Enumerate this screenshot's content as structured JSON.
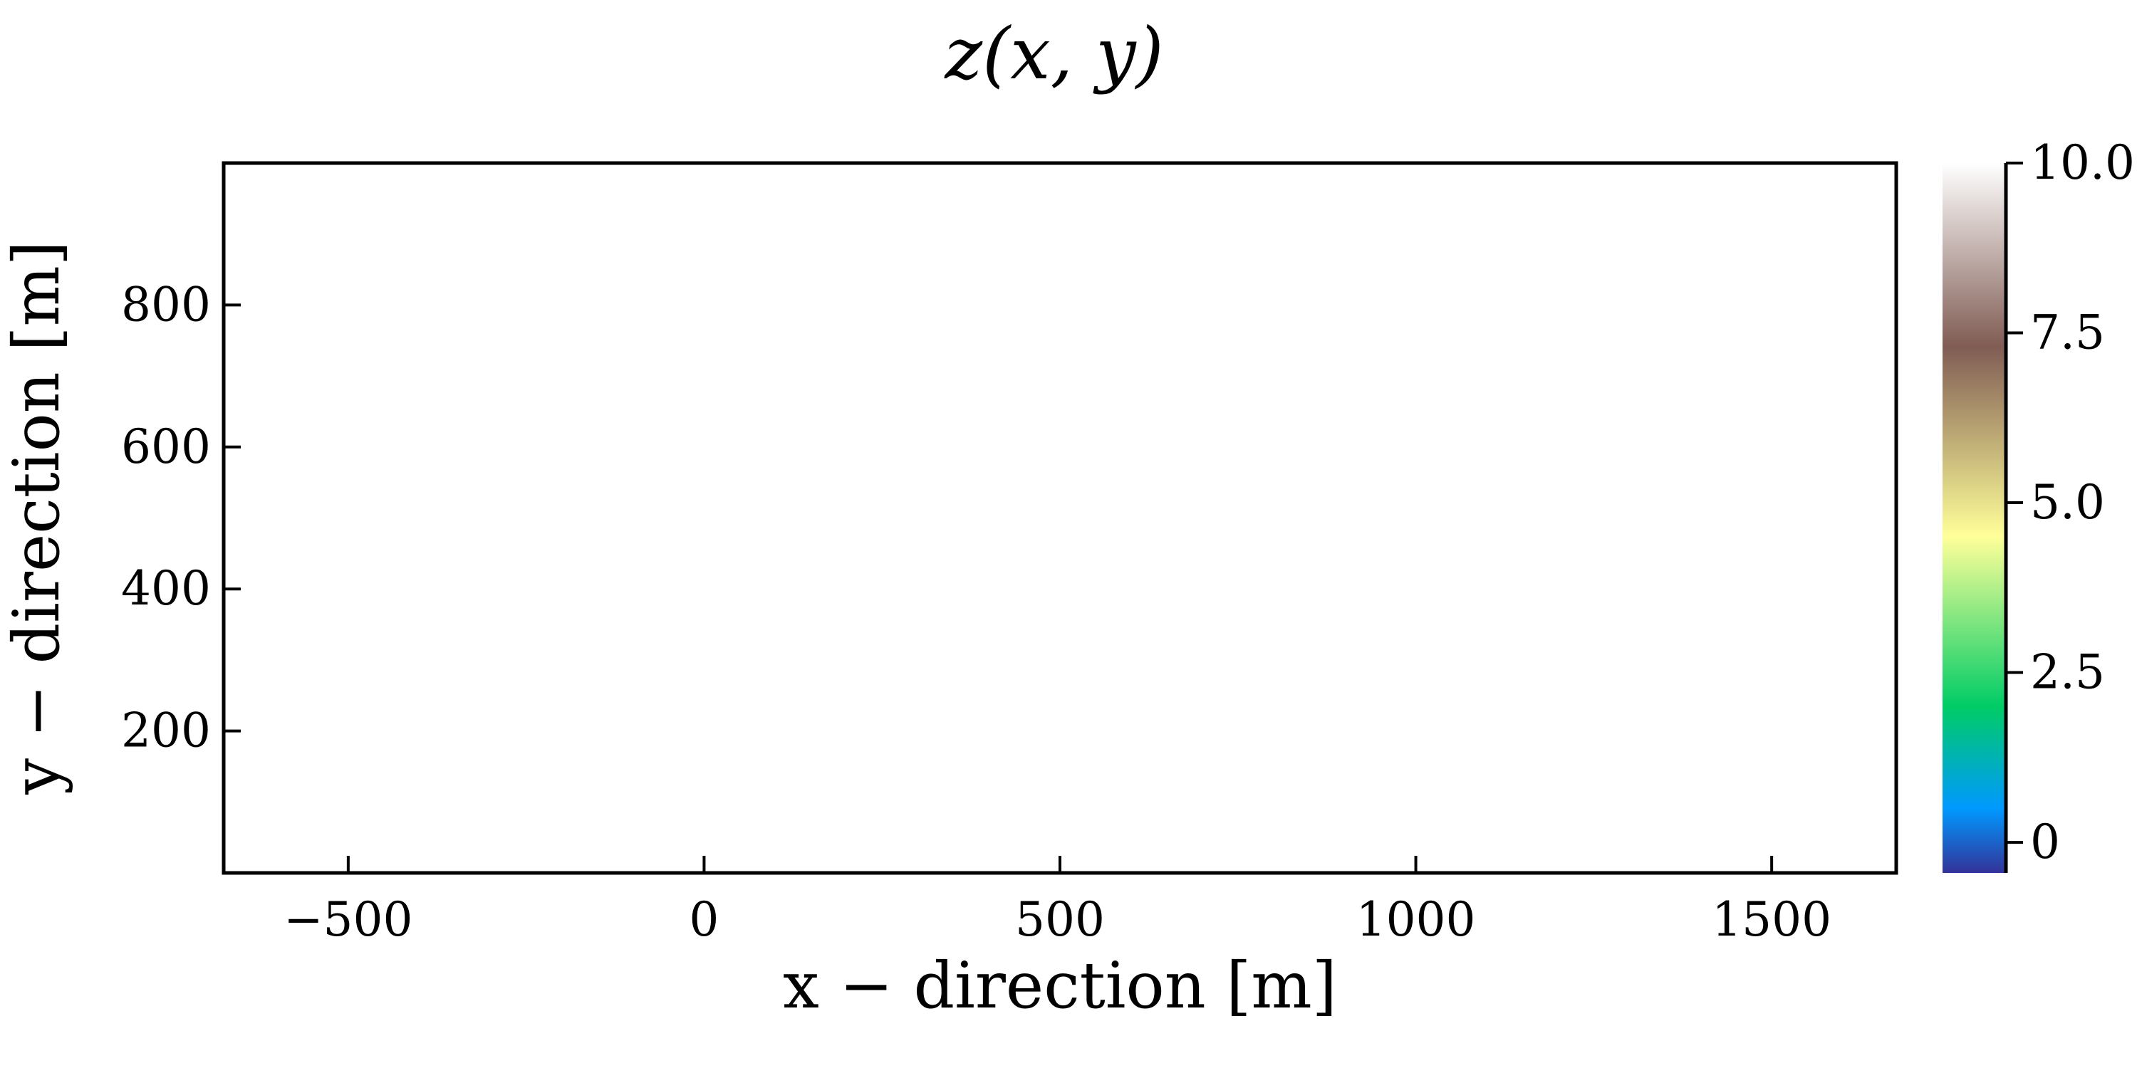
{
  "chart_data": {
    "type": "heatmap",
    "title": "z(x, y)",
    "xlabel": "x − direction [m]",
    "ylabel": "y − direction [m]",
    "xlim": [
      -675,
      1675
    ],
    "ylim": [
      0,
      1000
    ],
    "x_ticks": [
      -500,
      0,
      500,
      1000,
      1500
    ],
    "x_tick_labels": [
      "−500",
      "0",
      "500",
      "1000",
      "1500"
    ],
    "y_ticks": [
      200,
      400,
      600,
      800
    ],
    "y_tick_labels": [
      "200",
      "400",
      "600",
      "800"
    ],
    "data_extent": {
      "x": [
        0,
        1000
      ],
      "y": [
        0,
        1000
      ]
    },
    "z_values_uniform": 10.0,
    "grid": false,
    "colorbar": {
      "range": [
        -0.45,
        10.0
      ],
      "ticks": [
        0,
        2.5,
        5.0,
        7.5,
        10.0
      ],
      "tick_labels": [
        "0",
        "2.5",
        "5.0",
        "7.5",
        "10.0"
      ],
      "colormap": "terrain",
      "stops": [
        {
          "value": -0.45,
          "color": "#333399"
        },
        {
          "value": 0.5,
          "color": "#0099ff"
        },
        {
          "value": 2.0,
          "color": "#00cc66"
        },
        {
          "value": 4.5,
          "color": "#ffff99"
        },
        {
          "value": 7.3,
          "color": "#805c54"
        },
        {
          "value": 10.0,
          "color": "#ffffff"
        }
      ]
    }
  }
}
